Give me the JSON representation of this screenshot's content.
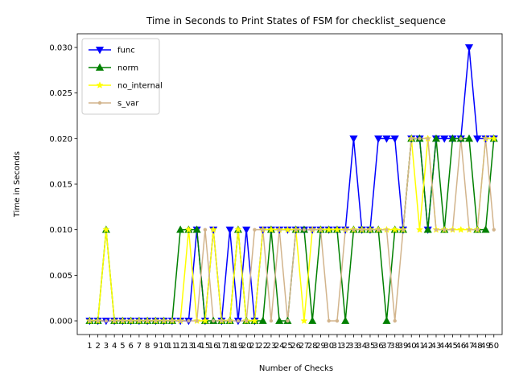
{
  "chart_data": {
    "type": "line",
    "title": "Time in Seconds to Print States of FSM for checklist_sequence",
    "xlabel": "Number of Checks",
    "ylabel": "Time in Seconds",
    "ylim": [
      -0.0015,
      0.0315
    ],
    "xlim": [
      -0.5,
      51
    ],
    "grid": false,
    "legend_position": "upper-left",
    "yticks": [
      "0.000",
      "0.005",
      "0.010",
      "0.015",
      "0.020",
      "0.025",
      "0.030"
    ],
    "ytick_values": [
      0,
      0.005,
      0.01,
      0.015,
      0.02,
      0.025,
      0.03
    ],
    "x": [
      1,
      2,
      3,
      4,
      5,
      6,
      7,
      8,
      9,
      10,
      11,
      12,
      13,
      14,
      15,
      16,
      17,
      18,
      19,
      20,
      21,
      22,
      23,
      24,
      25,
      26,
      27,
      28,
      29,
      30,
      31,
      32,
      33,
      34,
      35,
      36,
      37,
      38,
      39,
      40,
      41,
      42,
      43,
      44,
      45,
      46,
      47,
      48,
      49,
      50
    ],
    "series": [
      {
        "name": "func",
        "color": "#0000ff",
        "marker": "triangle-down",
        "values": [
          0,
          0,
          0,
          0,
          0,
          0,
          0,
          0,
          0,
          0,
          0,
          0,
          0,
          0.01,
          0,
          0.01,
          0,
          0.01,
          0,
          0.01,
          0,
          0.01,
          0.01,
          0.01,
          0.01,
          0.01,
          0.01,
          0.01,
          0.01,
          0.01,
          0.01,
          0.01,
          0.02,
          0.01,
          0.01,
          0.02,
          0.02,
          0.02,
          0.01,
          0.02,
          0.02,
          0.01,
          0.02,
          0.02,
          0.02,
          0.02,
          0.03,
          0.02,
          0.02,
          0.02
        ]
      },
      {
        "name": "norm",
        "color": "#008000",
        "marker": "triangle-up",
        "values": [
          0,
          0,
          0.01,
          0,
          0,
          0,
          0,
          0,
          0,
          0,
          0,
          0.01,
          0.01,
          0.01,
          0,
          0,
          0,
          0,
          0.01,
          0,
          0,
          0,
          0.01,
          0,
          0,
          0.01,
          0.01,
          0,
          0.01,
          0.01,
          0.01,
          0,
          0.01,
          0.01,
          0.01,
          0.01,
          0,
          0.01,
          0.01,
          0.02,
          0.02,
          0.01,
          0.02,
          0.01,
          0.02,
          0.02,
          0.02,
          0.01,
          0.01,
          0.02
        ]
      },
      {
        "name": "no_internal",
        "color": "#ffff00",
        "marker": "star",
        "values": [
          0,
          0,
          0.01,
          0,
          0,
          0,
          0,
          0,
          0,
          0,
          0,
          0,
          0.01,
          0,
          0,
          0.01,
          0,
          0,
          0.01,
          0,
          0,
          0.01,
          0.01,
          0.01,
          0.01,
          0.01,
          0,
          0.01,
          0.01,
          0.01,
          0.01,
          0.01,
          0.01,
          0.01,
          0.01,
          0.01,
          0.01,
          0.01,
          0.01,
          0.02,
          0.01,
          0.02,
          0.01,
          0.01,
          0.01,
          0.01,
          0.01,
          0.01,
          0.02,
          0.02
        ]
      },
      {
        "name": "s_var",
        "color": "#d2b48c",
        "marker": "dot",
        "values": [
          0,
          0,
          0,
          0,
          0,
          0,
          0,
          0,
          0,
          0,
          0,
          0,
          0,
          0,
          0.01,
          0,
          0,
          0,
          0,
          0,
          0.01,
          0.01,
          0,
          0.01,
          0,
          0.01,
          0.01,
          0.01,
          0.01,
          0,
          0,
          0.01,
          0.01,
          0.01,
          0.01,
          0.01,
          0.01,
          0,
          0.01,
          0.02,
          0.02,
          0.02,
          0.01,
          0.01,
          0.01,
          0.02,
          0.01,
          0.01,
          0.02,
          0.01
        ]
      }
    ]
  }
}
